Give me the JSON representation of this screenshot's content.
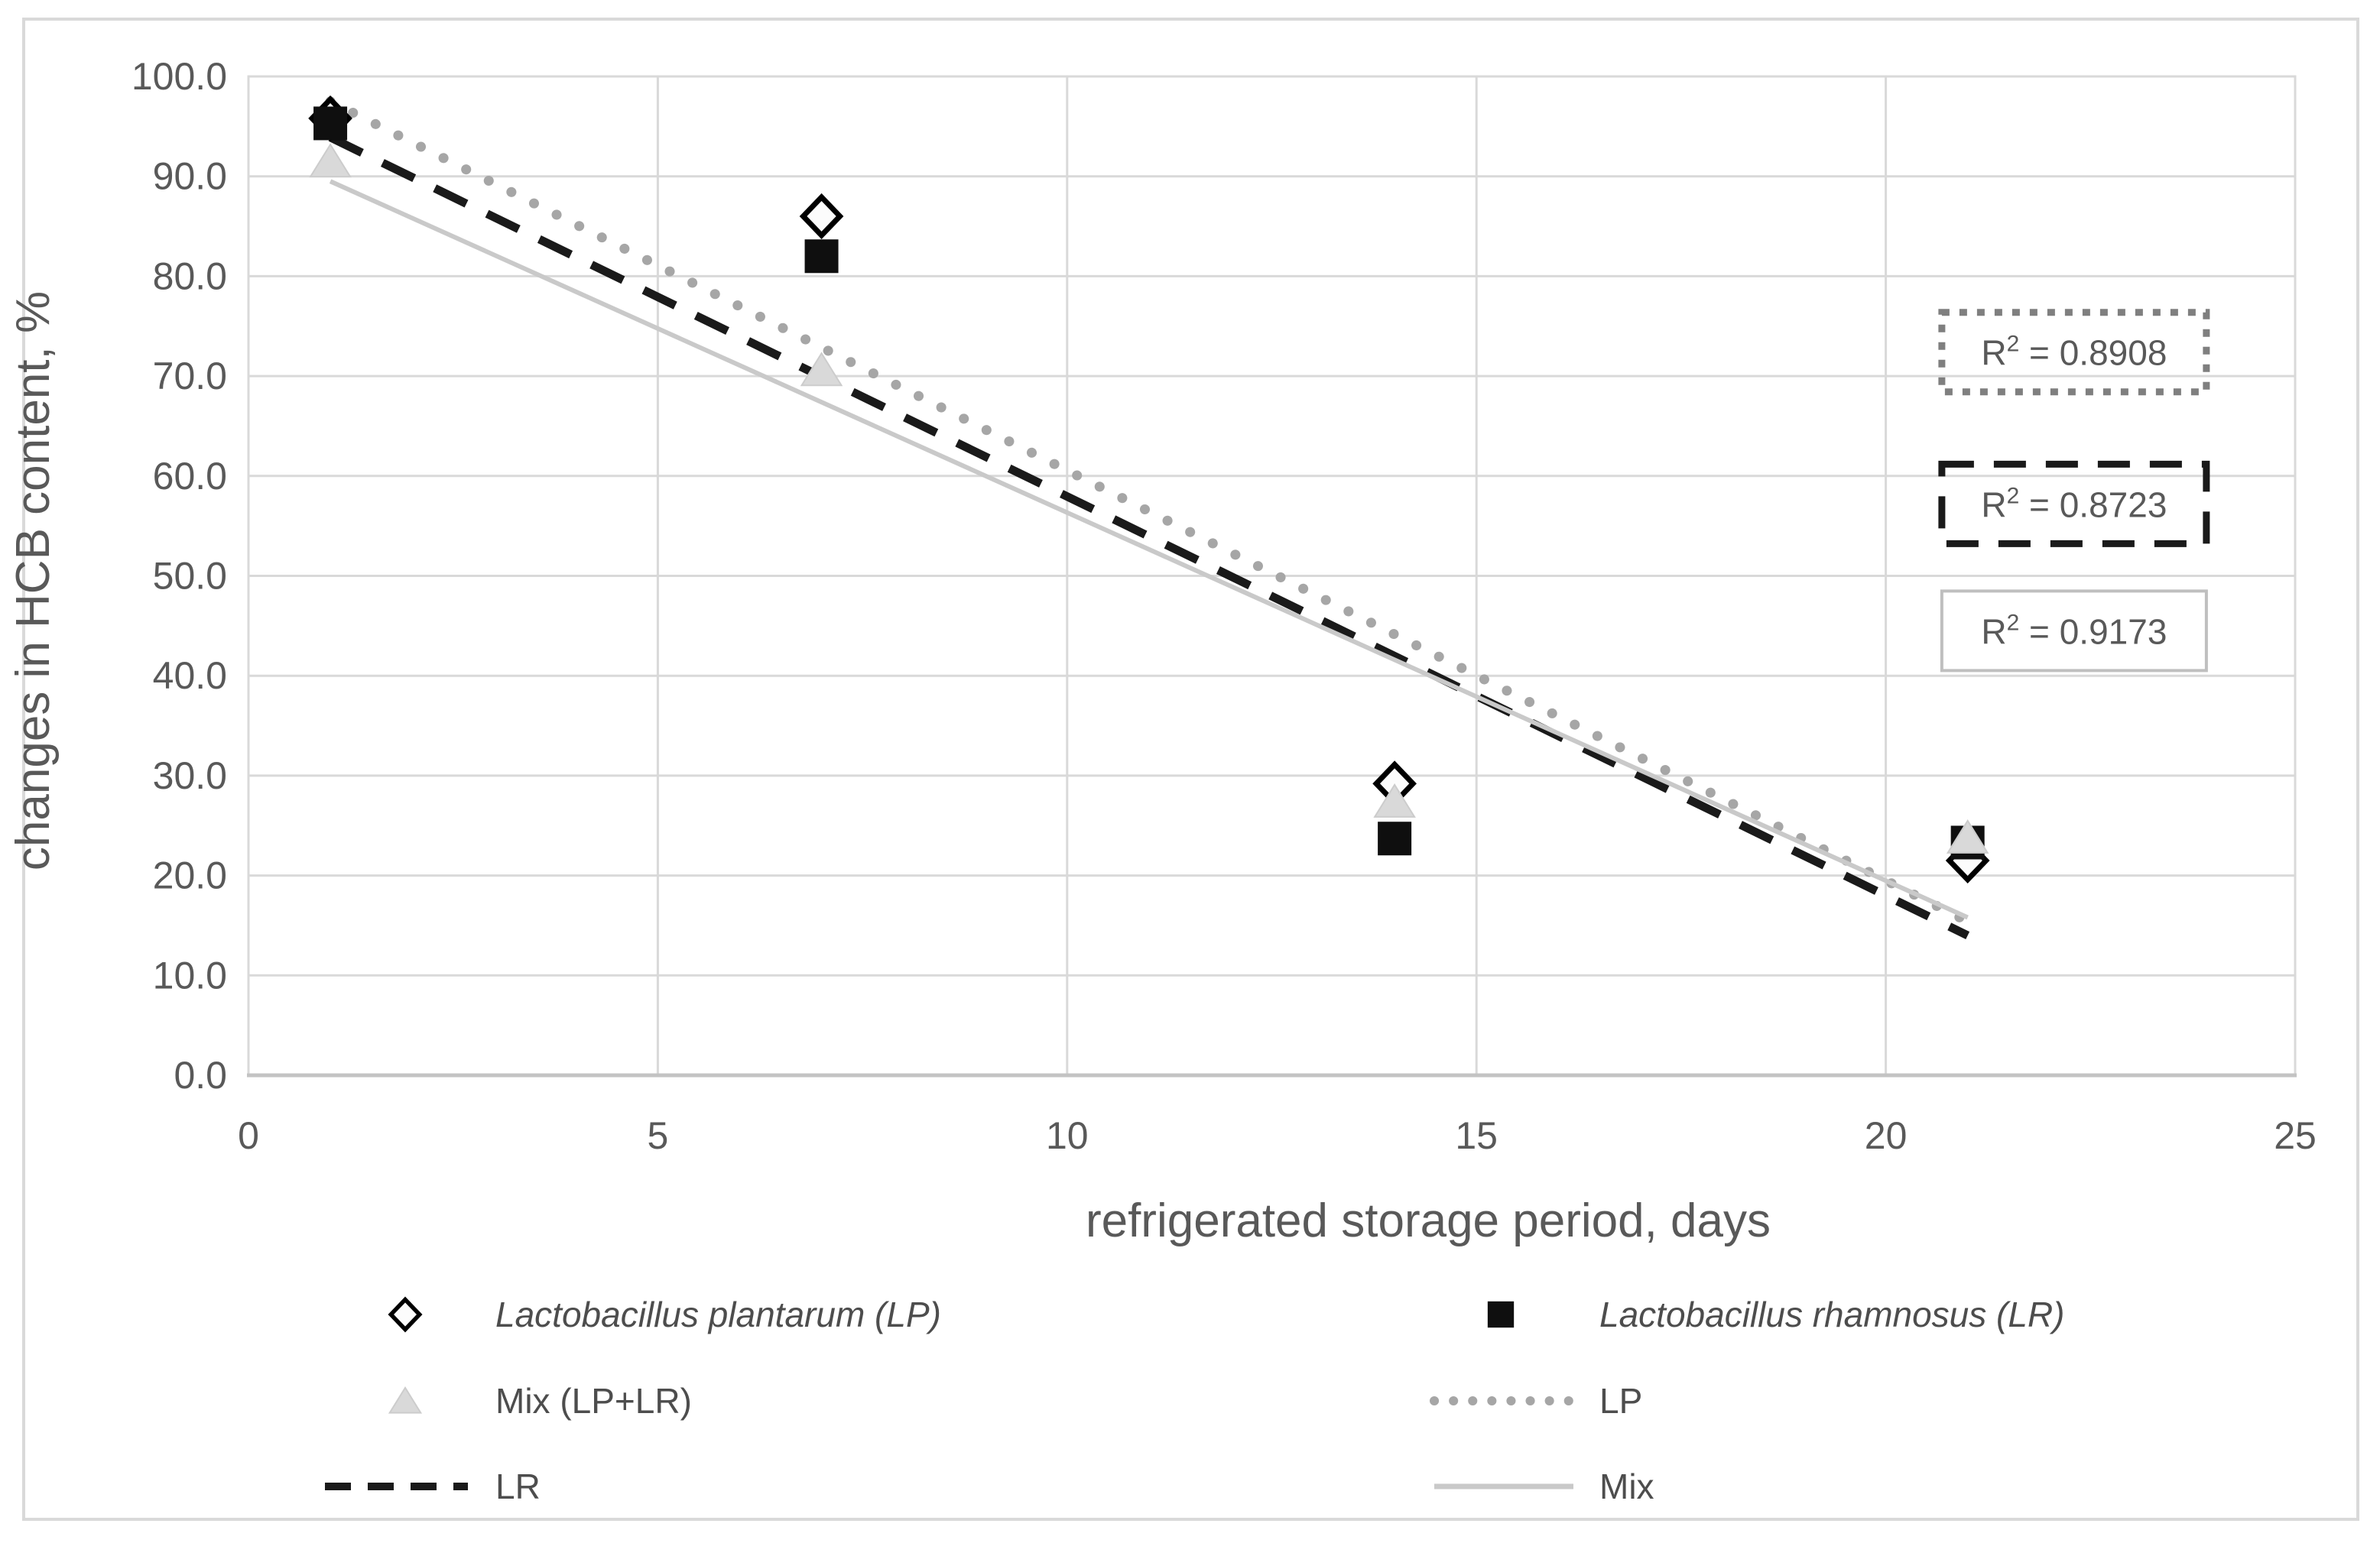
{
  "colors": {
    "text": "#595959",
    "legend_text": "#4d4d4d",
    "grid": "#d9d9d9",
    "axis_line": "#c3c3c3",
    "figure_border": "#d9d9d9",
    "background": "#ffffff",
    "lp_trend": "#a6a6a6",
    "lr_trend": "#1a1a1a",
    "mix_trend": "#c9c9c9",
    "diamond_stroke": "#000000",
    "diamond_fill": "#fcfcfc",
    "square_fill": "#0f0f0f",
    "triangle_fill": "#d9d9d9",
    "triangle_stroke": "#cccccc"
  },
  "chart_data": {
    "type": "scatter",
    "title": "",
    "xlabel": "refrigerated storage period, days",
    "ylabel": "changes in HCB content, %",
    "xlim": [
      0,
      25
    ],
    "ylim": [
      0,
      100
    ],
    "grid": true,
    "legend_position": "bottom",
    "xticks": {
      "values": [
        0,
        5,
        10,
        15,
        20,
        25
      ],
      "labels": [
        "0",
        "5",
        "10",
        "15",
        "20",
        "25"
      ]
    },
    "yticks": {
      "values": [
        0,
        10,
        20,
        30,
        40,
        50,
        60,
        70,
        80,
        90,
        100
      ],
      "labels": [
        "0.0",
        "10.0",
        "20.0",
        "30.0",
        "40.0",
        "50.0",
        "60.0",
        "70.0",
        "80.0",
        "90.0",
        "100.0"
      ]
    },
    "series": [
      {
        "name": "Lactobacillus plantarum (LP)",
        "short": "LP",
        "marker": "diamond-open",
        "points": [
          [
            1,
            95.8
          ],
          [
            7,
            86.0
          ],
          [
            14,
            29.2
          ],
          [
            21,
            21.5
          ]
        ]
      },
      {
        "name": "Lactobacillus rhamnosus (LR)",
        "short": "LR",
        "marker": "square-filled",
        "points": [
          [
            1,
            95.3
          ],
          [
            7,
            82.0
          ],
          [
            14,
            23.7
          ],
          [
            21,
            23.3
          ]
        ]
      },
      {
        "name": "Mix (LP+LR)",
        "short": "Mix",
        "marker": "triangle-filled",
        "points": [
          [
            1,
            91.5
          ],
          [
            7,
            70.6
          ],
          [
            14,
            27.4
          ],
          [
            21,
            23.8
          ]
        ]
      }
    ],
    "trendlines": [
      {
        "name": "LP",
        "style": "dotted",
        "from": [
          1,
          97.5
        ],
        "to": [
          21,
          15.4
        ],
        "r2": 0.8908,
        "r2_label": "R² = 0.8908",
        "box_center": [
          22.3,
          72.4
        ]
      },
      {
        "name": "LR",
        "style": "dashed",
        "from": [
          1,
          93.9
        ],
        "to": [
          21,
          14.0
        ],
        "r2": 0.8723,
        "r2_label": "R² = 0.8723",
        "box_center": [
          22.3,
          57.2
        ]
      },
      {
        "name": "Mix",
        "style": "solid",
        "from": [
          1,
          89.5
        ],
        "to": [
          21,
          15.8
        ],
        "r2": 0.9173,
        "r2_label": "R² = 0.9173",
        "box_center": [
          22.3,
          44.5
        ]
      }
    ],
    "legend": {
      "columns": [
        [
          {
            "marker": "diamond-open",
            "label": "Lactobacillus plantarum (LP)",
            "italic": true
          },
          {
            "marker": "triangle-filled",
            "label": "Mix (LP+LR)",
            "italic": false
          },
          {
            "marker": "line-dashed",
            "label": "LR",
            "italic": false
          }
        ],
        [
          {
            "marker": "square-filled",
            "label": "Lactobacillus rhamnosus (LR)",
            "italic": true
          },
          {
            "marker": "line-dotted",
            "label": "LP",
            "italic": false
          },
          {
            "marker": "line-solid",
            "label": "Mix",
            "italic": false
          }
        ]
      ]
    }
  }
}
